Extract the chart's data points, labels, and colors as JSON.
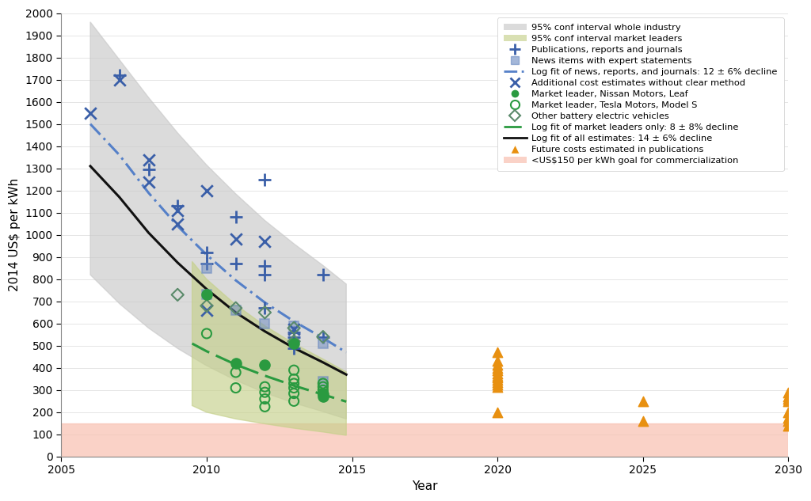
{
  "xlabel": "Year",
  "ylabel": "2014 US$ per kWh",
  "xlim": [
    2005,
    2030
  ],
  "ylim": [
    0,
    2000
  ],
  "yticks": [
    0,
    100,
    200,
    300,
    400,
    500,
    600,
    700,
    800,
    900,
    1000,
    1100,
    1200,
    1300,
    1400,
    1500,
    1600,
    1700,
    1800,
    1900,
    2000
  ],
  "xticks": [
    2005,
    2010,
    2015,
    2020,
    2025,
    2030
  ],
  "publications_plus": [
    [
      2007,
      1720
    ],
    [
      2008,
      1295
    ],
    [
      2009,
      1130
    ],
    [
      2010,
      920
    ],
    [
      2010,
      870
    ],
    [
      2011,
      1080
    ],
    [
      2011,
      870
    ],
    [
      2012,
      1250
    ],
    [
      2012,
      860
    ],
    [
      2012,
      820
    ],
    [
      2012,
      670
    ],
    [
      2013,
      560
    ],
    [
      2013,
      540
    ],
    [
      2013,
      490
    ],
    [
      2014,
      820
    ],
    [
      2014,
      540
    ]
  ],
  "news_squares": [
    [
      2010,
      850
    ],
    [
      2010,
      730
    ],
    [
      2011,
      660
    ],
    [
      2012,
      600
    ],
    [
      2013,
      590
    ],
    [
      2014,
      510
    ],
    [
      2014,
      340
    ]
  ],
  "additional_x": [
    [
      2006,
      1550
    ],
    [
      2007,
      1700
    ],
    [
      2008,
      1240
    ],
    [
      2009,
      1110
    ],
    [
      2009,
      1050
    ],
    [
      2010,
      1200
    ],
    [
      2010,
      660
    ],
    [
      2008,
      1340
    ],
    [
      2011,
      980
    ],
    [
      2012,
      970
    ],
    [
      2013,
      575
    ]
  ],
  "nissan_leaf": [
    [
      2010,
      730
    ],
    [
      2011,
      420
    ],
    [
      2012,
      415
    ],
    [
      2013,
      510
    ],
    [
      2014,
      280
    ],
    [
      2014,
      270
    ]
  ],
  "tesla_models": [
    [
      2010,
      555
    ],
    [
      2011,
      380
    ],
    [
      2011,
      310
    ],
    [
      2012,
      315
    ],
    [
      2012,
      290
    ],
    [
      2012,
      260
    ],
    [
      2012,
      225
    ],
    [
      2013,
      390
    ],
    [
      2013,
      350
    ],
    [
      2013,
      330
    ],
    [
      2013,
      310
    ],
    [
      2013,
      285
    ],
    [
      2013,
      250
    ],
    [
      2014,
      330
    ],
    [
      2014,
      315
    ],
    [
      2014,
      300
    ],
    [
      2014,
      285
    ]
  ],
  "other_bev": [
    [
      2009,
      730
    ],
    [
      2010,
      680
    ],
    [
      2011,
      670
    ],
    [
      2012,
      650
    ],
    [
      2013,
      580
    ],
    [
      2013,
      520
    ],
    [
      2014,
      540
    ]
  ],
  "future_costs_2020": [
    470,
    430,
    415,
    400,
    390,
    375,
    365,
    355,
    345,
    335,
    325,
    315,
    200
  ],
  "future_costs_2025": [
    250,
    160
  ],
  "future_costs_2030": [
    290,
    270,
    260,
    250,
    200,
    175,
    160,
    140
  ],
  "log_fit_all_x": [
    2006,
    2006.5,
    2007,
    2008,
    2009,
    2010,
    2011,
    2012,
    2013,
    2014,
    2014.8
  ],
  "log_fit_all_y": [
    1310,
    1240,
    1170,
    1010,
    875,
    755,
    650,
    565,
    490,
    425,
    370
  ],
  "log_fit_news_x": [
    2006,
    2006.5,
    2007,
    2008,
    2009,
    2010,
    2011,
    2012,
    2013,
    2014,
    2014.8
  ],
  "log_fit_news_y": [
    1500,
    1430,
    1360,
    1190,
    1040,
    910,
    795,
    695,
    610,
    535,
    470
  ],
  "log_fit_market_x": [
    2009.5,
    2010,
    2011,
    2012,
    2013,
    2014,
    2014.8
  ],
  "log_fit_market_y": [
    510,
    475,
    415,
    365,
    320,
    280,
    248
  ],
  "conf_industry_upper_x": [
    2006,
    2007,
    2008,
    2009,
    2010,
    2011,
    2012,
    2013,
    2014,
    2014.8
  ],
  "conf_industry_upper_y": [
    1960,
    1790,
    1620,
    1460,
    1315,
    1185,
    1065,
    960,
    862,
    778
  ],
  "conf_industry_lower_x": [
    2006,
    2007,
    2008,
    2009,
    2010,
    2011,
    2012,
    2013,
    2014,
    2014.8
  ],
  "conf_industry_lower_y": [
    820,
    690,
    580,
    488,
    410,
    344,
    288,
    242,
    203,
    170
  ],
  "conf_market_upper_x": [
    2009.5,
    2010,
    2011,
    2012,
    2013,
    2014,
    2014.8
  ],
  "conf_market_upper_y": [
    880,
    800,
    685,
    590,
    510,
    440,
    382
  ],
  "conf_market_lower_x": [
    2009.5,
    2010,
    2011,
    2012,
    2013,
    2014,
    2014.8
  ],
  "conf_market_lower_y": [
    230,
    200,
    170,
    148,
    128,
    111,
    96
  ],
  "commercialization_y": 150,
  "colors": {
    "conf_industry": "#c8c8c8",
    "conf_market": "#c5d08a",
    "log_fit_all": "#111111",
    "log_fit_news": "#5580c8",
    "log_fit_market": "#2a9a40",
    "publications_plus": "#3a5fa8",
    "news_squares": "#6888c0",
    "additional_x": "#3a5fa8",
    "nissan_leaf": "#2a9a40",
    "tesla_models": "#2a9a40",
    "other_bev": "#5a8a6a",
    "future_costs": "#e89010",
    "commercialization": "#f8c0b0"
  },
  "legend_entries": [
    "95% conf interval whole industry",
    "95% conf interval market leaders",
    "Publications, reports and journals",
    "News items with expert statements",
    "Log fit of news, reports, and journals: 12 ± 6% decline",
    "Additional cost estimates without clear method",
    "Market leader, Nissan Motors, Leaf",
    "Market leader, Tesla Motors, Model S",
    "Other battery electric vehicles",
    "Log fit of market leaders only: 8 ± 8% decline",
    "Log fit of all estimates: 14 ± 6% decline",
    "Future costs estimated in publications",
    "<US$150 per kWh goal for commercialization"
  ]
}
